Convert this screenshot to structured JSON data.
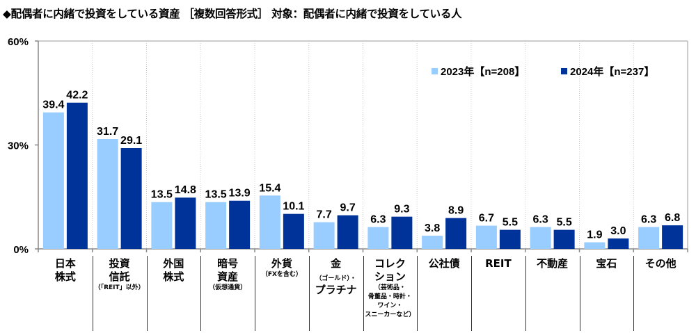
{
  "title": "◆配偶者に内緒で投資をしている資産 ［複数回答形式］ 対象：配偶者に内緒で投資をしている人",
  "chart_data": {
    "type": "bar",
    "title": "◆配偶者に内緒で投資をしている資産 ［複数回答形式］ 対象：配偶者に内緒で投資をしている人",
    "xlabel": "",
    "ylabel": "",
    "ylim": [
      0,
      60
    ],
    "yticks": [
      0,
      30,
      60
    ],
    "ytick_labels": [
      "0%",
      "30%",
      "60%"
    ],
    "grid": "vertical dotted separators between categories",
    "legend_position": "top-right",
    "categories": [
      {
        "lines": [
          "日本",
          "株式"
        ],
        "note": []
      },
      {
        "lines": [
          "投資",
          "信託"
        ],
        "note": [
          "（「REIT」以外）"
        ]
      },
      {
        "lines": [
          "外国",
          "株式"
        ],
        "note": []
      },
      {
        "lines": [
          "暗号",
          "資産"
        ],
        "note": [
          "（仮想通貨）"
        ]
      },
      {
        "lines": [
          "外貨"
        ],
        "note": [
          "（FXを含む）"
        ]
      },
      {
        "lines": [
          "金"
        ],
        "note": [
          "（ゴールド）・"
        ],
        "after": [
          "プラチナ"
        ]
      },
      {
        "lines": [
          "コレク",
          "ション"
        ],
        "note": [
          "（芸術品・",
          "骨董品・時計・",
          "ワイン・",
          "スニーカーなど）"
        ]
      },
      {
        "lines": [
          "公社債"
        ],
        "note": []
      },
      {
        "lines": [
          "REIT"
        ],
        "note": []
      },
      {
        "lines": [
          "不動産"
        ],
        "note": []
      },
      {
        "lines": [
          "宝石"
        ],
        "note": []
      },
      {
        "lines": [
          "その他"
        ],
        "note": []
      }
    ],
    "series": [
      {
        "name": "2023年【n=208】",
        "color": "#99CCFF",
        "values": [
          39.4,
          31.7,
          13.5,
          13.5,
          15.4,
          7.7,
          6.3,
          3.8,
          6.7,
          6.3,
          1.9,
          6.3
        ]
      },
      {
        "name": "2024年【n=237】",
        "color": "#003399",
        "values": [
          42.2,
          29.1,
          14.8,
          13.9,
          10.1,
          9.7,
          9.3,
          8.9,
          5.5,
          5.5,
          3.0,
          6.8
        ]
      }
    ]
  }
}
